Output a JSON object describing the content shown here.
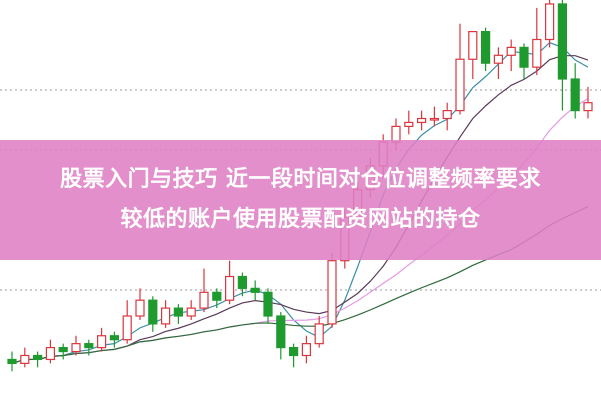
{
  "banner": {
    "line1": "股票入门与技巧 近一段时间对仓位调整频率要求",
    "line2": "较低的账户使用股票配资网站的持仓"
  },
  "chart_data": {
    "type": "candlestick",
    "title": "",
    "xlabel": "",
    "ylabel": "",
    "grid": "dotted horizontal",
    "up_color": "#d9363e",
    "down_color": "#1f9a2e",
    "moving_averages": [
      {
        "period": 5,
        "color": "#3a8fa8"
      },
      {
        "period": 10,
        "color": "#5a3a5a"
      },
      {
        "period": 20,
        "color": "#e59ae6"
      },
      {
        "period": 40,
        "color": "#2d6a3a"
      }
    ],
    "candles_ohlc": [
      [
        9,
        11,
        6,
        8
      ],
      [
        8,
        12,
        7,
        10
      ],
      [
        10,
        11,
        7,
        9
      ],
      [
        9,
        14,
        8,
        12
      ],
      [
        12,
        13,
        9,
        11
      ],
      [
        11,
        15,
        10,
        13
      ],
      [
        13,
        14,
        10,
        12
      ],
      [
        12,
        17,
        11,
        15
      ],
      [
        15,
        16,
        12,
        14
      ],
      [
        14,
        24,
        13,
        20
      ],
      [
        20,
        27,
        19,
        24
      ],
      [
        24,
        25,
        16,
        18
      ],
      [
        18,
        24,
        17,
        22
      ],
      [
        22,
        23,
        18,
        20
      ],
      [
        20,
        24,
        19,
        22
      ],
      [
        22,
        32,
        21,
        26
      ],
      [
        26,
        27,
        22,
        24
      ],
      [
        24,
        34,
        23,
        30
      ],
      [
        30,
        31,
        25,
        27
      ],
      [
        27,
        29,
        24,
        26
      ],
      [
        26,
        27,
        18,
        20
      ],
      [
        20,
        21,
        9,
        12
      ],
      [
        12,
        13,
        7,
        10
      ],
      [
        10,
        15,
        8,
        13
      ],
      [
        13,
        20,
        12,
        18
      ],
      [
        18,
        36,
        17,
        34
      ],
      [
        34,
        47,
        32,
        45
      ],
      [
        45,
        54,
        43,
        52
      ],
      [
        52,
        60,
        50,
        58
      ],
      [
        58,
        66,
        55,
        64
      ],
      [
        64,
        70,
        62,
        68
      ],
      [
        68,
        72,
        66,
        69
      ],
      [
        69,
        72,
        67,
        70
      ],
      [
        70,
        73,
        68,
        70
      ],
      [
        70,
        74,
        67,
        72
      ],
      [
        72,
        94,
        71,
        85
      ],
      [
        85,
        92,
        80,
        92
      ],
      [
        92,
        93,
        82,
        84
      ],
      [
        84,
        88,
        80,
        86
      ],
      [
        86,
        90,
        82,
        88
      ],
      [
        88,
        89,
        80,
        83
      ],
      [
        83,
        98,
        81,
        90
      ],
      [
        90,
        100,
        88,
        99
      ],
      [
        99,
        100,
        72,
        80
      ],
      [
        80,
        84,
        70,
        72
      ],
      [
        72,
        78,
        70,
        74
      ]
    ]
  }
}
